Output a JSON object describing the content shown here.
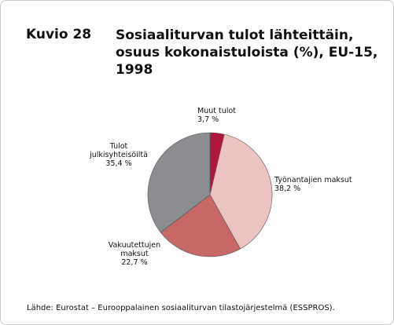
{
  "chart_data": {
    "type": "pie",
    "figure_number": "Kuvio 28",
    "title": "Sosiaaliturvan tulot lähteittäin, osuus kokonaistuloista (%), EU-15, 1998",
    "categories": [
      "Muut tulot",
      "Työnantajien maksut",
      "Vakuutettujen maksut",
      "Tulot julkisyhteisöiltä"
    ],
    "values": [
      3.7,
      38.2,
      22.7,
      35.4
    ],
    "value_labels": [
      "3,7 %",
      "38,2 %",
      "22,7 %",
      "35,4 %"
    ],
    "colors": [
      "#b0173f",
      "#ebc3c0",
      "#c76866",
      "#8b8d90"
    ],
    "source": "Lähde: Eurostat – Eurooppalainen sosiaaliturvan tilastojärjestelmä (ESSPROS)."
  }
}
